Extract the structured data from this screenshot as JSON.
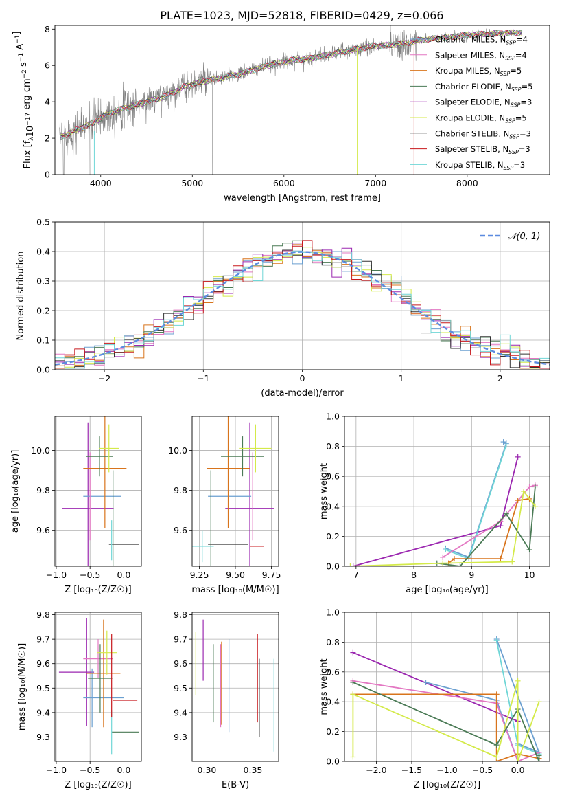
{
  "title": "PLATE=1023, MJD=52818, FIBERID=0429, z=0.066",
  "legend": [
    {
      "base": "Chabrier MILES, N",
      "sub": "SSP",
      "tail": "=4",
      "color": "#6a9fd0"
    },
    {
      "base": "Salpeter MILES, N",
      "sub": "SSP",
      "tail": "=4",
      "color": "#e377c2"
    },
    {
      "base": "Kroupa MILES, N",
      "sub": "SSP",
      "tail": "=5",
      "color": "#d8741c"
    },
    {
      "base": "Chabrier ELODIE, N",
      "sub": "SSP",
      "tail": "=5",
      "color": "#4a7a55"
    },
    {
      "base": "Salpeter ELODIE, N",
      "sub": "SSP",
      "tail": "=3",
      "color": "#9b27b0"
    },
    {
      "base": "Kroupa ELODIE, N",
      "sub": "SSP",
      "tail": "=5",
      "color": "#d4ea4a"
    },
    {
      "base": "Chabrier STELIB, N",
      "sub": "SSP",
      "tail": "=3",
      "color": "#333333"
    },
    {
      "base": "Salpeter STELIB, N",
      "sub": "SSP",
      "tail": "=3",
      "color": "#c8181c"
    },
    {
      "base": "Kroupa STELIB, N",
      "sub": "SSP",
      "tail": "=3",
      "color": "#6fd6d6"
    }
  ],
  "chart_data": [
    {
      "type": "line",
      "xlabel": "wavelength [Angstrom, rest frame]",
      "ylabel_parts": [
        "Flux [f",
        "λ",
        "10",
        "−17",
        " erg cm",
        "−2",
        " s",
        "−1",
        " A",
        "−1",
        "]"
      ],
      "xlim": [
        3500,
        8900
      ],
      "ylim": [
        0,
        8.2
      ],
      "xticks": [
        4000,
        5000,
        6000,
        7000,
        8000
      ],
      "yticks": [
        0,
        2,
        4,
        6,
        8
      ],
      "data_color": "#808080",
      "continuum": [
        [
          3550,
          2.0
        ],
        [
          3700,
          2.4
        ],
        [
          3900,
          2.8
        ],
        [
          4100,
          3.4
        ],
        [
          4300,
          3.7
        ],
        [
          4500,
          4.0
        ],
        [
          4700,
          4.3
        ],
        [
          4900,
          4.8
        ],
        [
          5100,
          5.1
        ],
        [
          5300,
          5.3
        ],
        [
          5500,
          5.5
        ],
        [
          5700,
          5.8
        ],
        [
          5900,
          6.1
        ],
        [
          6100,
          6.3
        ],
        [
          6300,
          6.4
        ],
        [
          6500,
          6.6
        ],
        [
          6700,
          6.8
        ],
        [
          6900,
          7.0
        ],
        [
          7100,
          7.1
        ],
        [
          7300,
          7.2
        ],
        [
          7500,
          7.4
        ],
        [
          7700,
          7.5
        ],
        [
          7900,
          7.6
        ],
        [
          8100,
          7.7
        ],
        [
          8300,
          7.75
        ],
        [
          8500,
          7.8
        ],
        [
          8600,
          7.8
        ]
      ]
    },
    {
      "type": "line",
      "xlabel": "(data-model)/error",
      "ylabel": "Normed distribution",
      "xlim": [
        -2.5,
        2.5
      ],
      "ylim": [
        0,
        0.5
      ],
      "xticks": [
        -2,
        -1,
        0,
        1,
        2
      ],
      "xticklabels": [
        "−2",
        "−1",
        "0",
        "1",
        "2"
      ],
      "yticks": [
        0,
        0.1,
        0.2,
        0.3,
        0.4,
        0.5
      ],
      "yticklabels": [
        "0.0",
        "0.1",
        "0.2",
        "0.3",
        "0.4",
        "0.5"
      ],
      "gaussian_label": "𝒩(0, 1)",
      "gaussian_color": "#5b8be0",
      "bin_width": 0.1
    },
    {
      "type": "scatter",
      "xlabel": "Z [log₁₀(Z/Z☉)]",
      "ylabel": "age  [log₁₀(age/yr)]",
      "xlim": [
        -1.02,
        0.26
      ],
      "ylim": [
        9.42,
        10.17
      ],
      "xticks": [
        -1.0,
        -0.5,
        0.0
      ],
      "xticklabels": [
        "−1.0",
        "−0.5",
        "0.0"
      ],
      "yticks": [
        9.6,
        9.8,
        10.0
      ],
      "yticklabels": [
        "9.6",
        "9.8",
        "10.0"
      ],
      "bars": [
        {
          "x": -0.53,
          "y": 9.71,
          "xerr": 0.38,
          "yerr": 0.43,
          "color": "#9b27b0"
        },
        {
          "x": -0.32,
          "y": 9.77,
          "xerr": 0.28,
          "yerr": 0.0,
          "color": "#6a9fd0"
        },
        {
          "x": -0.5,
          "y": 9.77,
          "xerr": 0.0,
          "yerr": 0.22,
          "color": "#e377c2"
        },
        {
          "x": -0.28,
          "y": 9.91,
          "xerr": 0.32,
          "yerr": 0.3,
          "color": "#d8741c"
        },
        {
          "x": -0.36,
          "y": 9.97,
          "xerr": 0.2,
          "yerr": 0.1,
          "color": "#4a7a55"
        },
        {
          "x": -0.22,
          "y": 10.01,
          "xerr": 0.15,
          "yerr": 0.12,
          "color": "#d4ea4a"
        },
        {
          "x": 0.0,
          "y": 9.53,
          "xerr": 0.22,
          "yerr": 0.0,
          "color": "#333333"
        },
        {
          "x": -0.16,
          "y": 9.53,
          "xerr": 0.0,
          "yerr": 0.37,
          "color": "#4a7a55"
        },
        {
          "x": -0.18,
          "y": 9.55,
          "xerr": 0.0,
          "yerr": 0.1,
          "color": "#6fd6d6"
        }
      ]
    },
    {
      "type": "scatter",
      "xlabel": "mass [log₁₀(M/M☉)]",
      "xlim": [
        9.2,
        9.8
      ],
      "ylim": [
        9.42,
        10.17
      ],
      "xticks": [
        9.25,
        9.5,
        9.75
      ],
      "xticklabels": [
        "9.25",
        "9.50",
        "9.75"
      ],
      "yticks": [
        9.6,
        9.8,
        10.0
      ],
      "yticklabels": [
        "9.6",
        "9.8",
        "10.0"
      ],
      "bars": [
        {
          "x": 9.6,
          "y": 9.71,
          "xerr": 0.17,
          "yerr": 0.43,
          "color": "#9b27b0"
        },
        {
          "x": 9.46,
          "y": 9.77,
          "xerr": 0.15,
          "yerr": 0.0,
          "color": "#6a9fd0"
        },
        {
          "x": 9.62,
          "y": 9.77,
          "xerr": 0.0,
          "yerr": 0.22,
          "color": "#e377c2"
        },
        {
          "x": 9.45,
          "y": 9.91,
          "xerr": 0.15,
          "yerr": 0.3,
          "color": "#d8741c"
        },
        {
          "x": 9.55,
          "y": 9.97,
          "xerr": 0.15,
          "yerr": 0.1,
          "color": "#4a7a55"
        },
        {
          "x": 9.64,
          "y": 10.01,
          "xerr": 0.11,
          "yerr": 0.12,
          "color": "#d4ea4a"
        },
        {
          "x": 9.45,
          "y": 9.53,
          "xerr": 0.14,
          "yerr": 0.0,
          "color": "#333333"
        },
        {
          "x": 9.33,
          "y": 9.53,
          "xerr": 0.0,
          "yerr": 0.37,
          "color": "#4a7a55"
        },
        {
          "x": 9.27,
          "y": 9.52,
          "xerr": 0.08,
          "yerr": 0.08,
          "color": "#6fd6d6"
        },
        {
          "x": 9.45,
          "y": 9.53,
          "xerr": 0.0,
          "yerr": 0.0,
          "color": "#c8181c"
        },
        {
          "x": 9.65,
          "y": 9.52,
          "xerr": 0.05,
          "yerr": 0.0,
          "color": "#c8181c"
        }
      ]
    },
    {
      "type": "line",
      "xlabel": "age  [log₁₀(age/yr)]",
      "ylabel": "mass weight",
      "xlim": [
        6.8,
        10.35
      ],
      "ylim": [
        0,
        1.0
      ],
      "xticks": [
        7,
        8,
        9,
        10
      ],
      "yticks": [
        0,
        0.2,
        0.4,
        0.6,
        0.8,
        1.0
      ],
      "yticklabels": [
        "0.0",
        "0.2",
        "0.4",
        "0.6",
        "0.8",
        "1.0"
      ],
      "series": [
        {
          "color": "#9b27b0",
          "points": [
            [
              6.95,
              0.0
            ],
            [
              9.5,
              0.27
            ],
            [
              9.8,
              0.73
            ]
          ]
        },
        {
          "color": "#6a9fd0",
          "points": [
            [
              8.55,
              0.12
            ],
            [
              8.95,
              0.06
            ],
            [
              9.6,
              0.82
            ],
            [
              9.55,
              0.83
            ]
          ]
        },
        {
          "color": "#6fd6d6",
          "points": [
            [
              8.55,
              0.11
            ],
            [
              8.95,
              0.05
            ],
            [
              9.6,
              0.81
            ]
          ]
        },
        {
          "color": "#e377c2",
          "points": [
            [
              8.5,
              0.06
            ],
            [
              9.5,
              0.3
            ],
            [
              10.0,
              0.53
            ],
            [
              10.1,
              0.54
            ]
          ]
        },
        {
          "color": "#d8741c",
          "points": [
            [
              8.6,
              0.02
            ],
            [
              8.7,
              0.05
            ],
            [
              9.5,
              0.05
            ],
            [
              9.8,
              0.44
            ],
            [
              10.0,
              0.45
            ]
          ]
        },
        {
          "color": "#4a7a55",
          "points": [
            [
              8.4,
              0.02
            ],
            [
              8.8,
              0.0
            ],
            [
              9.6,
              0.35
            ],
            [
              10.0,
              0.11
            ],
            [
              10.1,
              0.53
            ]
          ]
        },
        {
          "color": "#d4ea4a",
          "points": [
            [
              6.9,
              0.0
            ],
            [
              8.5,
              0.02
            ],
            [
              9.7,
              0.03
            ],
            [
              9.9,
              0.5
            ],
            [
              10.1,
              0.4
            ]
          ]
        }
      ]
    },
    {
      "type": "scatter",
      "xlabel": "Z [log₁₀(Z/Z☉)]",
      "ylabel": "mass [log₁₀(M/M☉)]",
      "xlim": [
        -1.02,
        0.26
      ],
      "ylim": [
        9.2,
        9.81
      ],
      "xticks": [
        -1.0,
        -0.5,
        0.0
      ],
      "xticklabels": [
        "−1.0",
        "−0.5",
        "0.0"
      ],
      "yticks": [
        9.3,
        9.4,
        9.5,
        9.6,
        9.7,
        9.8
      ],
      "yticklabels": [
        "9.3",
        "9.4",
        "9.5",
        "9.6",
        "9.7",
        "9.8"
      ],
      "bars": [
        {
          "x": -0.7,
          "y": 9.565,
          "xerr": 0.26,
          "yerr": 0.0,
          "color": "#9b27b0"
        },
        {
          "x": -0.55,
          "y": 9.565,
          "xerr": 0.0,
          "yerr": 0.22,
          "color": "#9b27b0"
        },
        {
          "x": -0.3,
          "y": 9.46,
          "xerr": 0.3,
          "yerr": 0.0,
          "color": "#6a9fd0"
        },
        {
          "x": -0.47,
          "y": 9.46,
          "xerr": 0.0,
          "yerr": 0.12,
          "color": "#6a9fd0"
        },
        {
          "x": -0.38,
          "y": 9.62,
          "xerr": 0.22,
          "yerr": 0.08,
          "color": "#e377c2"
        },
        {
          "x": -0.3,
          "y": 9.56,
          "xerr": 0.25,
          "yerr": 0.22,
          "color": "#d8741c"
        },
        {
          "x": -0.35,
          "y": 9.54,
          "xerr": 0.18,
          "yerr": 0.14,
          "color": "#4a7a55"
        },
        {
          "x": -0.25,
          "y": 9.645,
          "xerr": 0.15,
          "yerr": 0.09,
          "color": "#d4ea4a"
        },
        {
          "x": 0.02,
          "y": 9.32,
          "xerr": 0.2,
          "yerr": 0.0,
          "color": "#4a7a55"
        },
        {
          "x": -0.18,
          "y": 9.32,
          "xerr": 0.0,
          "yerr": 0.09,
          "color": "#6fd6d6"
        },
        {
          "x": 0.02,
          "y": 9.45,
          "xerr": 0.18,
          "yerr": 0.0,
          "color": "#c8181c"
        },
        {
          "x": -0.18,
          "y": 9.55,
          "xerr": 0.0,
          "yerr": 0.17,
          "color": "#c8181c"
        }
      ]
    },
    {
      "type": "scatter",
      "xlabel": "E(B-V)",
      "xlim": [
        0.284,
        0.378
      ],
      "ylim": [
        9.2,
        9.81
      ],
      "xticks": [
        0.3,
        0.35
      ],
      "xticklabels": [
        "0.30",
        "0.35"
      ],
      "yticks": [
        9.3,
        9.4,
        9.5,
        9.6,
        9.7,
        9.8
      ],
      "yticklabels": [
        "9.3",
        "9.4",
        "9.5",
        "9.6",
        "9.7",
        "9.8"
      ],
      "bars": [
        {
          "x": 0.288,
          "y": 9.6,
          "xerr": 0.0,
          "yerr": 0.13,
          "color": "#d4ea4a"
        },
        {
          "x": 0.296,
          "y": 9.655,
          "xerr": 0.0,
          "yerr": 0.125,
          "color": "#9b27b0"
        },
        {
          "x": 0.307,
          "y": 9.52,
          "xerr": 0.0,
          "yerr": 0.16,
          "color": "#4a7a55"
        },
        {
          "x": 0.315,
          "y": 9.51,
          "xerr": 0.0,
          "yerr": 0.17,
          "color": "#e377c2"
        },
        {
          "x": 0.316,
          "y": 9.52,
          "xerr": 0.0,
          "yerr": 0.17,
          "color": "#d8741c"
        },
        {
          "x": 0.324,
          "y": 9.51,
          "xerr": 0.0,
          "yerr": 0.19,
          "color": "#6a9fd0"
        },
        {
          "x": 0.355,
          "y": 9.54,
          "xerr": 0.0,
          "yerr": 0.18,
          "color": "#c8181c"
        },
        {
          "x": 0.357,
          "y": 9.46,
          "xerr": 0.0,
          "yerr": 0.16,
          "color": "#333333"
        },
        {
          "x": 0.373,
          "y": 9.43,
          "xerr": 0.0,
          "yerr": 0.19,
          "color": "#6fd6d6"
        }
      ]
    },
    {
      "type": "line",
      "xlabel": "Z [log₁₀(Z/Z☉)]",
      "ylabel": "mass weight",
      "xlim": [
        -2.45,
        0.45
      ],
      "ylim": [
        0,
        1.0
      ],
      "xticks": [
        -2.0,
        -1.5,
        -1.0,
        -0.5,
        0.0
      ],
      "xticklabels": [
        "−2.0",
        "−1.5",
        "−1.0",
        "−0.5",
        "0.0"
      ],
      "yticks": [
        0,
        0.2,
        0.4,
        0.6,
        0.8,
        1.0
      ],
      "yticklabels": [
        "0.0",
        "0.2",
        "0.4",
        "0.6",
        "0.8",
        "1.0"
      ],
      "series": [
        {
          "color": "#9b27b0",
          "points": [
            [
              -2.33,
              0.73
            ],
            [
              0.0,
              0.27
            ]
          ]
        },
        {
          "color": "#6a9fd0",
          "points": [
            [
              -1.3,
              0.53
            ],
            [
              -0.3,
              0.41
            ],
            [
              0.0,
              0.0
            ],
            [
              0.0,
              0.12
            ],
            [
              0.3,
              0.06
            ],
            [
              -0.3,
              0.82
            ]
          ]
        },
        {
          "color": "#6fd6d6",
          "points": [
            [
              -0.3,
              0.81
            ],
            [
              0.0,
              0.11
            ],
            [
              0.3,
              0.05
            ]
          ]
        },
        {
          "color": "#e377c2",
          "points": [
            [
              -2.33,
              0.54
            ],
            [
              -0.3,
              0.39
            ],
            [
              0.0,
              0.0
            ],
            [
              0.3,
              0.06
            ]
          ]
        },
        {
          "color": "#d8741c",
          "points": [
            [
              -2.33,
              0.45
            ],
            [
              -0.3,
              0.45
            ],
            [
              -0.3,
              0.0
            ],
            [
              0.0,
              0.05
            ],
            [
              0.3,
              0.02
            ]
          ]
        },
        {
          "color": "#4a7a55",
          "points": [
            [
              -2.33,
              0.53
            ],
            [
              -0.3,
              0.11
            ],
            [
              0.0,
              0.35
            ],
            [
              0.3,
              0.0
            ],
            [
              0.3,
              0.04
            ]
          ]
        },
        {
          "color": "#d4ea4a",
          "points": [
            [
              -2.33,
              0.03
            ],
            [
              -2.33,
              0.45
            ],
            [
              -0.3,
              0.03
            ],
            [
              0.0,
              0.54
            ],
            [
              0.0,
              0.0
            ],
            [
              0.3,
              0.4
            ]
          ]
        }
      ]
    }
  ]
}
